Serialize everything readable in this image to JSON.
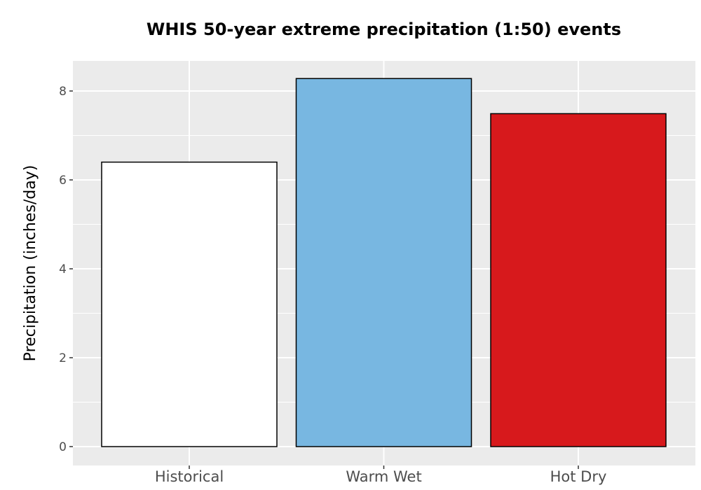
{
  "chart_data": {
    "type": "bar",
    "title": "WHIS 50-year extreme precipitation (1:50) events",
    "xlabel": "",
    "ylabel": "Precipitation (inches/day)",
    "categories": [
      "Historical",
      "Warm Wet",
      "Hot Dry"
    ],
    "values": [
      6.4,
      8.28,
      7.49
    ],
    "colors": [
      "#ffffff",
      "#78b7e1",
      "#d7191c"
    ],
    "ylim": [
      0,
      8.7
    ],
    "yticks": [
      0,
      2,
      4,
      6,
      8
    ],
    "ytick_labels": [
      "0",
      "2",
      "4",
      "6",
      "8"
    ],
    "grid": true,
    "legend": "none"
  }
}
